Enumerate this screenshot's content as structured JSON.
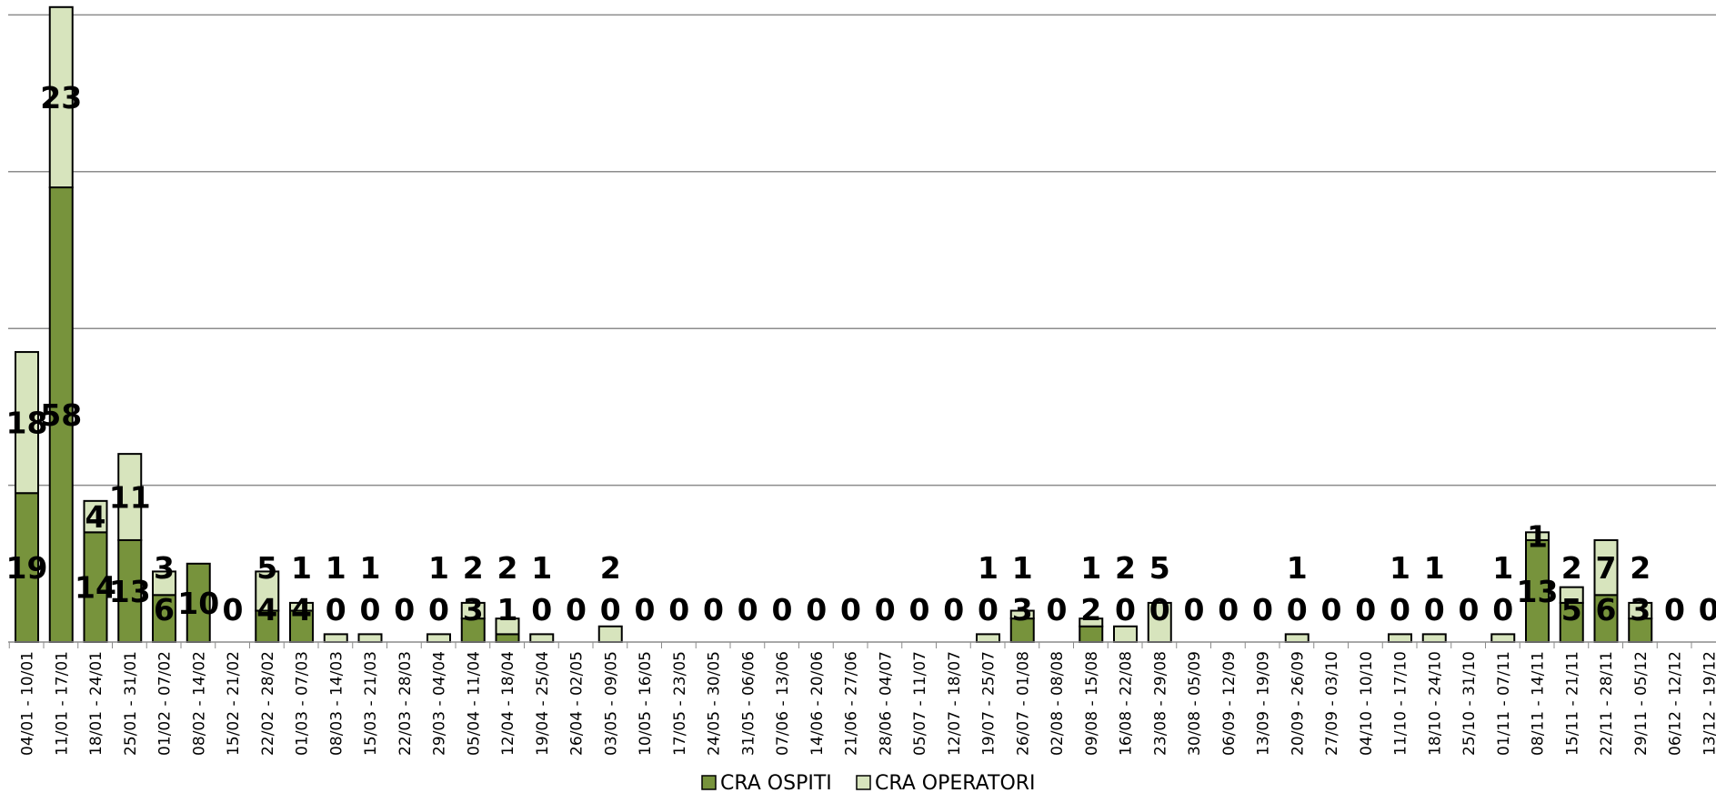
{
  "chart_data": {
    "type": "bar",
    "stacked": true,
    "categories": [
      "04/01 - 10/01",
      "11/01 - 17/01",
      "18/01 - 24/01",
      "25/01 - 31/01",
      "01/02 - 07/02",
      "08/02 - 14/02",
      "15/02 - 21/02",
      "22/02 - 28/02",
      "01/03 - 07/03",
      "08/03 - 14/03",
      "15/03 - 21/03",
      "22/03 - 28/03",
      "29/03 - 04/04",
      "05/04 - 11/04",
      "12/04 - 18/04",
      "19/04 - 25/04",
      "26/04 - 02/05",
      "03/05 - 09/05",
      "10/05 - 16/05",
      "17/05 - 23/05",
      "24/05 - 30/05",
      "31/05 - 06/06",
      "07/06 - 13/06",
      "14/06 - 20/06",
      "21/06 - 27/06",
      "28/06 - 04/07",
      "05/07 - 11/07",
      "12/07 - 18/07",
      "19/07 - 25/07",
      "26/07 - 01/08",
      "02/08 - 08/08",
      "09/08 - 15/08",
      "16/08 - 22/08",
      "23/08 - 29/08",
      "30/08 - 05/09",
      "06/09 - 12/09",
      "13/09 - 19/09",
      "20/09 - 26/09",
      "27/09 - 03/10",
      "04/10 - 10/10",
      "11/10 - 17/10",
      "18/10 - 24/10",
      "25/10 - 31/10",
      "01/11 - 07/11",
      "08/11 - 14/11",
      "15/11 - 21/11",
      "22/11 - 28/11",
      "29/11 - 05/12",
      "06/12 - 12/12",
      "13/12 - 19/12"
    ],
    "series": [
      {
        "name": "CRA OSPITI",
        "color": "#77933c",
        "values": [
          19,
          58,
          14,
          13,
          6,
          10,
          0,
          4,
          4,
          0,
          0,
          0,
          0,
          3,
          1,
          0,
          0,
          0,
          0,
          0,
          0,
          0,
          0,
          0,
          0,
          0,
          0,
          0,
          0,
          3,
          0,
          2,
          0,
          0,
          0,
          0,
          0,
          0,
          0,
          0,
          0,
          0,
          0,
          0,
          13,
          5,
          6,
          3,
          0,
          0
        ]
      },
      {
        "name": "CRA OPERATORI",
        "color": "#d7e4bd",
        "values": [
          18,
          23,
          4,
          11,
          3,
          0,
          0,
          5,
          1,
          1,
          1,
          0,
          1,
          2,
          2,
          1,
          0,
          2,
          0,
          0,
          0,
          0,
          0,
          0,
          0,
          0,
          0,
          0,
          1,
          1,
          0,
          1,
          2,
          5,
          0,
          0,
          0,
          1,
          0,
          0,
          1,
          1,
          0,
          1,
          1,
          2,
          7,
          2,
          0,
          0
        ]
      }
    ],
    "ylim": [
      0,
      82
    ],
    "gridlines": [
      20,
      40,
      60,
      80
    ],
    "grid": true,
    "legend": "bottom"
  }
}
